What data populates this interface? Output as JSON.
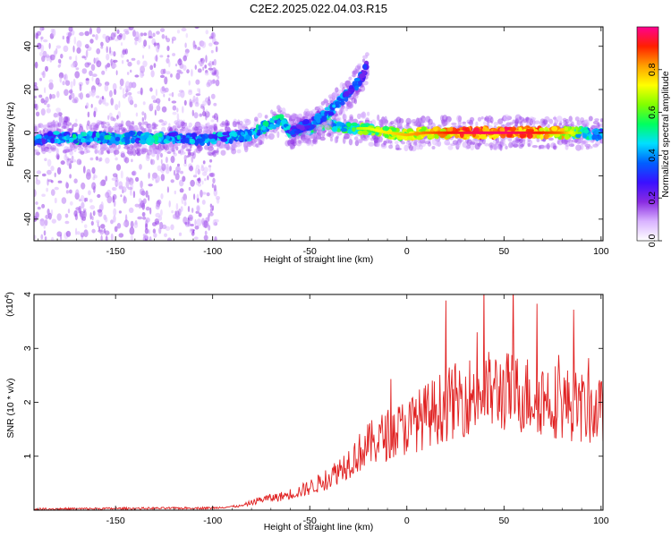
{
  "title": "C2E2.2025.022.04.03.R15",
  "colors": {
    "snr_line": "#e02020",
    "axis": "#000000"
  },
  "chart_data": [
    {
      "type": "heatmap",
      "xlabel": "Height of straight line (km)",
      "ylabel": "Frequency (Hz)",
      "xlim": [
        -192,
        101
      ],
      "ylim": [
        -50,
        49
      ],
      "xticks": [
        -150,
        -100,
        -50,
        0,
        50,
        100
      ],
      "yticks": [
        -40,
        -20,
        0,
        20,
        40
      ],
      "colorbar": {
        "label": "Normalized spectral amplitude",
        "range": [
          0,
          1
        ],
        "ticks": [
          0.0,
          0.2,
          0.4,
          0.6,
          0.8
        ],
        "tick_labels": [
          "0.0",
          "0.2",
          "0.4",
          "0.6",
          "0.8"
        ],
        "colormap": [
          "#ffffff",
          "#d9b3ff",
          "#8a2be2",
          "#3a10ff",
          "#0060ff",
          "#00e0ff",
          "#00ff60",
          "#80ff00",
          "#ffff00",
          "#ffa000",
          "#ff2000",
          "#ff0090"
        ]
      },
      "ridges": [
        {
          "name": "main",
          "points": [
            [
              -192,
              -3,
              0.45
            ],
            [
              -180,
              -2,
              0.5
            ],
            [
              -170,
              -3,
              0.55
            ],
            [
              -160,
              -2,
              0.5
            ],
            [
              -150,
              -3,
              0.55
            ],
            [
              -140,
              -2,
              0.5
            ],
            [
              -130,
              -3,
              0.55
            ],
            [
              -120,
              -2,
              0.5
            ],
            [
              -110,
              -3,
              0.5
            ],
            [
              -100,
              -3,
              0.5
            ],
            [
              -90,
              -2,
              0.5
            ],
            [
              -80,
              -1,
              0.5
            ],
            [
              -75,
              2,
              0.55
            ],
            [
              -70,
              4,
              0.55
            ],
            [
              -65,
              6,
              0.55
            ],
            [
              -60,
              0,
              0.5
            ],
            [
              -55,
              1,
              0.55
            ],
            [
              -50,
              2,
              0.6
            ],
            [
              -45,
              3,
              0.6
            ],
            [
              -40,
              4,
              0.6
            ],
            [
              -35,
              3,
              0.6
            ],
            [
              -30,
              2,
              0.65
            ],
            [
              -20,
              2,
              0.7
            ],
            [
              -10,
              0,
              0.75
            ],
            [
              0,
              -1,
              0.8
            ],
            [
              10,
              0,
              0.85
            ],
            [
              20,
              0,
              0.9
            ],
            [
              30,
              0,
              0.95
            ],
            [
              40,
              0,
              0.97
            ],
            [
              50,
              0,
              0.98
            ],
            [
              60,
              0,
              0.95
            ],
            [
              70,
              0,
              0.9
            ],
            [
              80,
              0,
              0.85
            ],
            [
              90,
              0,
              0.6
            ],
            [
              101,
              -1,
              0.5
            ]
          ]
        },
        {
          "name": "upper-branch",
          "points": [
            [
              -60,
              0,
              0.4
            ],
            [
              -50,
              4,
              0.45
            ],
            [
              -42,
              8,
              0.5
            ],
            [
              -36,
              13,
              0.5
            ],
            [
              -30,
              18,
              0.4
            ],
            [
              -26,
              22,
              0.45
            ],
            [
              -22,
              28,
              0.35
            ],
            [
              -20,
              33,
              0.3
            ]
          ]
        }
      ]
    },
    {
      "type": "line",
      "xlabel": "Height of straight line (km)",
      "ylabel": "SNR (10 * v/v)",
      "scale_label": "(x10",
      "scale_exponent": "4",
      "xlim": [
        -192,
        101
      ],
      "ylim": [
        0,
        4
      ],
      "xticks": [
        -150,
        -100,
        -50,
        0,
        50,
        100
      ],
      "yticks": [
        1,
        2,
        3,
        4
      ],
      "envelope": [
        [
          -192,
          0.02
        ],
        [
          -150,
          0.03
        ],
        [
          -100,
          0.04
        ],
        [
          -85,
          0.08
        ],
        [
          -75,
          0.2
        ],
        [
          -65,
          0.25
        ],
        [
          -55,
          0.35
        ],
        [
          -45,
          0.5
        ],
        [
          -40,
          0.6
        ],
        [
          -30,
          0.9
        ],
        [
          -20,
          1.2
        ],
        [
          -10,
          1.4
        ],
        [
          0,
          1.55
        ],
        [
          10,
          1.75
        ],
        [
          20,
          1.95
        ],
        [
          30,
          2.1
        ],
        [
          40,
          2.2
        ],
        [
          50,
          2.2
        ],
        [
          60,
          2.15
        ],
        [
          70,
          2.1
        ],
        [
          80,
          2.0
        ],
        [
          90,
          1.9
        ],
        [
          101,
          1.8
        ]
      ]
    }
  ]
}
